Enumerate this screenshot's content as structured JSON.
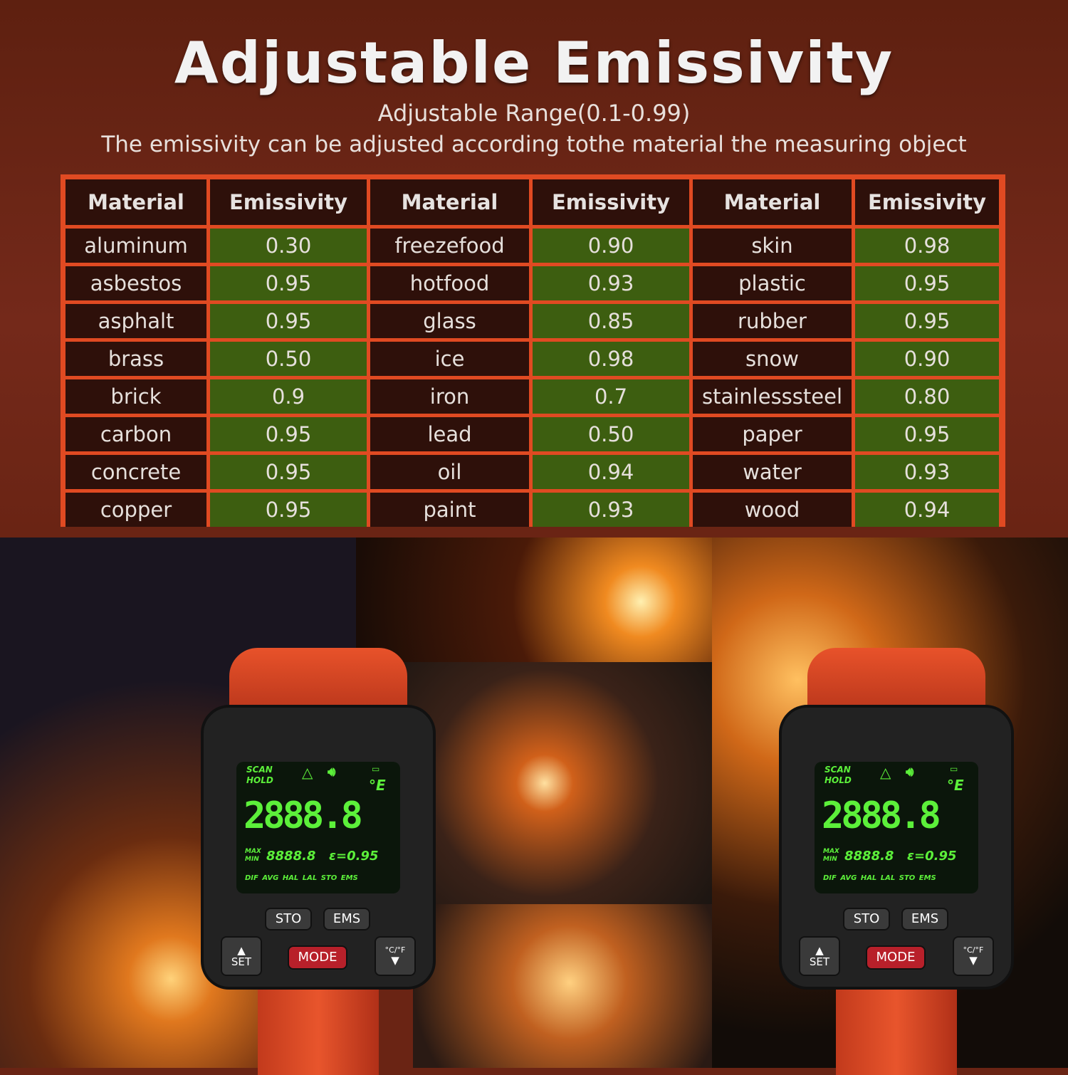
{
  "title": "Adjustable Emissivity",
  "subtitle": "Adjustable Range(0.1-0.99)",
  "description": "The emissivity can be adjusted according tothe material the measuring object",
  "colors": {
    "background": "#6a2414",
    "cell_dark": "#2e100a",
    "cell_green": "#3d5e10",
    "border": "#e04a22",
    "lcd_green": "#5cf03a"
  },
  "table": {
    "headers": [
      "Material",
      "Emissivity",
      "Material",
      "Emissivity",
      "Material",
      "Emissivity"
    ],
    "rows": [
      [
        "aluminum",
        "0.30",
        "freezefood",
        "0.90",
        "skin",
        "0.98"
      ],
      [
        "asbestos",
        "0.95",
        "hotfood",
        "0.93",
        "plastic",
        "0.95"
      ],
      [
        "asphalt",
        "0.95",
        "glass",
        "0.85",
        "rubber",
        "0.95"
      ],
      [
        "brass",
        "0.50",
        "ice",
        "0.98",
        "snow",
        "0.90"
      ],
      [
        "brick",
        "0.9",
        "iron",
        "0.7",
        "stainlesssteel",
        "0.80"
      ],
      [
        "carbon",
        "0.95",
        "lead",
        "0.50",
        "paper",
        "0.95"
      ],
      [
        "concrete",
        "0.95",
        "oil",
        "0.94",
        "water",
        "0.93"
      ],
      [
        "copper",
        "0.95",
        "paint",
        "0.93",
        "wood",
        "0.94"
      ]
    ]
  },
  "device": {
    "scan": "SCAN",
    "hold": "HOLD",
    "unit": "°E",
    "main_reading": "2888.8",
    "max": "MAX",
    "min": "MIN",
    "sub_reading": "8888.8",
    "emissivity": "ε=0.95",
    "modes": "DIF AVG HAL LAL STO EMS",
    "buttons": {
      "sto": "STO",
      "ems": "EMS",
      "set": "SET",
      "mode": "MODE",
      "cf": "°C/°F",
      "up": "▲",
      "down": "▼"
    }
  }
}
